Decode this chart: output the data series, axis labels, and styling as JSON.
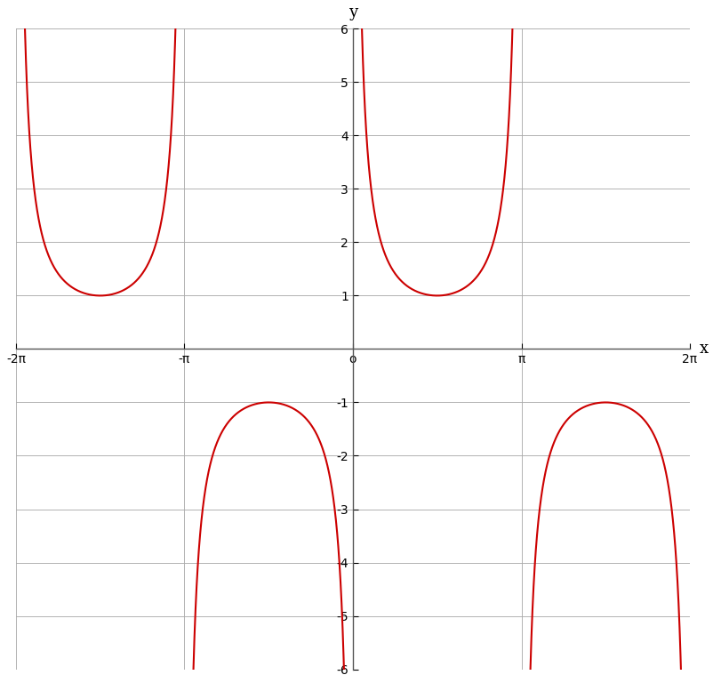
{
  "xlim": [
    -6.283185307179586,
    6.283185307179586
  ],
  "ylim": [
    -6,
    6
  ],
  "yticks": [
    -6,
    -5,
    -4,
    -3,
    -2,
    -1,
    1,
    2,
    3,
    4,
    5,
    6
  ],
  "xtick_positions": [
    -6.283185307179586,
    -3.141592653589793,
    0,
    3.141592653589793,
    6.283185307179586
  ],
  "xtick_labels": [
    "-2π",
    "-π",
    "o",
    "π",
    "2π"
  ],
  "curve_color": "#cc0000",
  "curve_linewidth": 1.5,
  "background_color": "#ffffff",
  "grid_color": "#aaaaaa",
  "axis_color": "#555555",
  "ylabel": "y",
  "xlabel": "x"
}
